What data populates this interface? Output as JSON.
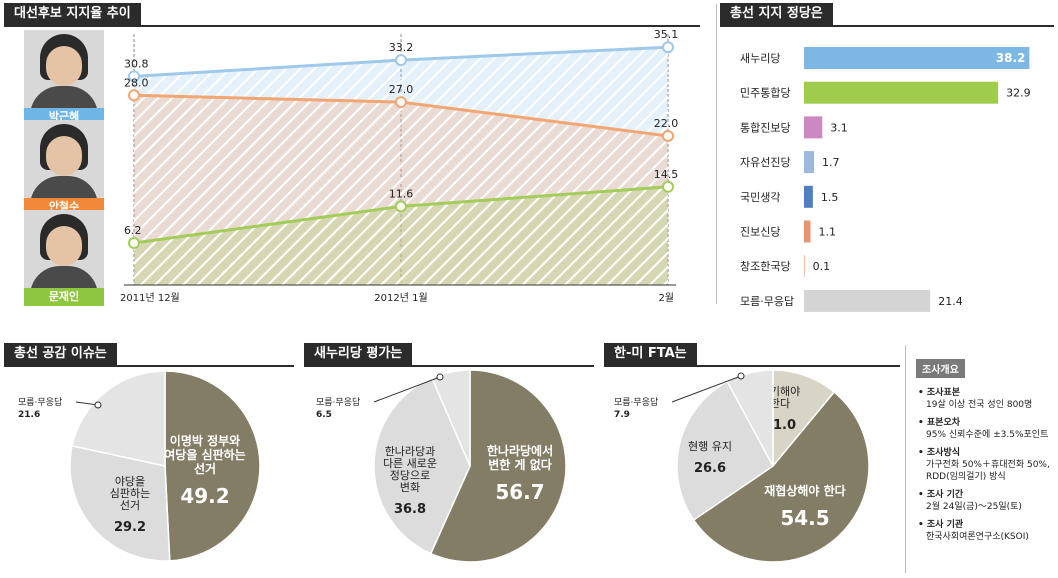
{
  "colors": {
    "blue": "#9ec9ea",
    "orange": "#f2a672",
    "green": "#a3cc5a",
    "olive": "#837d66",
    "lightgray": "#dcdcdc",
    "beige": "#d8d4c6",
    "header": "#2b2b2b"
  },
  "panels": {
    "trend_title": "대선후보 지지율 추이",
    "party_title": "총선 지지 정당은",
    "issue_title": "총선 공감 이슈는",
    "saenuri_title": "새누리당 평가는",
    "fta_title": "한-미 FTA는"
  },
  "candidates": [
    {
      "name": "박근혜",
      "color": "#6fb6e6",
      "icon": "portrait-icon"
    },
    {
      "name": "안철수",
      "color": "#f08a3a",
      "icon": "portrait-icon"
    },
    {
      "name": "문재인",
      "color": "#8dc63f",
      "icon": "portrait-icon"
    }
  ],
  "survey": {
    "title": "조사개요",
    "items": [
      {
        "head": "조사표본",
        "detail": [
          "19살 이상 전국 성인 800명"
        ]
      },
      {
        "head": "표본오차",
        "detail": [
          "95% 신뢰수준에 ±3.5%포인트"
        ]
      },
      {
        "head": "조사방식",
        "detail": [
          "가구전화 50%＋휴대전화 50%,",
          "RDD(임의걸기) 방식"
        ]
      },
      {
        "head": "조사 기간",
        "detail": [
          "2월 24일(금)～25일(토)"
        ]
      },
      {
        "head": "조사 기관",
        "detail": [
          "한국사회여론연구소(KSOI)"
        ]
      }
    ]
  },
  "chart_data": [
    {
      "type": "line",
      "title": "대선후보 지지율 추이",
      "x": [
        "2011년 12월",
        "2012년 1월",
        "2월"
      ],
      "ylim": [
        0,
        40
      ],
      "series": [
        {
          "name": "박근혜",
          "values": [
            30.8,
            33.2,
            35.1
          ],
          "labels": [
            "30.8",
            "33.2",
            "35.1"
          ],
          "color": "#9ec9ea"
        },
        {
          "name": "안철수",
          "values": [
            28.0,
            27.0,
            22.0
          ],
          "labels": [
            "28.0",
            "27.0",
            "22.0"
          ],
          "color": "#f2a672"
        },
        {
          "name": "문재인",
          "values": [
            6.2,
            11.6,
            14.5
          ],
          "labels": [
            "6.2",
            "11.6",
            "14.5"
          ],
          "color": "#a3cc5a"
        }
      ]
    },
    {
      "type": "bar",
      "title": "총선 지지 정당은",
      "categories": [
        "새누리당",
        "민주통합당",
        "통합진보당",
        "자유선진당",
        "국민생각",
        "진보신당",
        "창조한국당",
        "모름·무응답"
      ],
      "values": [
        38.2,
        32.9,
        3.1,
        1.7,
        1.5,
        1.1,
        0.1,
        21.4
      ],
      "labels": [
        "38.2",
        "32.9",
        "3.1",
        "1.7",
        "1.5",
        "1.1",
        "0.1",
        "21.4"
      ],
      "colors": [
        "#7db8e4",
        "#a0cc4e",
        "#cc88c0",
        "#9cb8dc",
        "#4f7fc0",
        "#e4976f",
        "#e4976f",
        "#d4d4d4"
      ],
      "label_inside": [
        true,
        false,
        false,
        false,
        false,
        false,
        false,
        false
      ],
      "xlim": [
        0,
        40
      ]
    },
    {
      "type": "pie",
      "title": "총선 공감 이슈는",
      "slices": [
        {
          "label": [
            "이명박 정부와",
            "여당을 심판하는",
            "선거"
          ],
          "value": 49.2,
          "text": "49.2",
          "color": "#837d66",
          "text_color": "#ffffff"
        },
        {
          "label": [
            "야당을",
            "심판하는",
            "선거"
          ],
          "value": 29.2,
          "text": "29.2",
          "color": "#dcdcdc",
          "text_color": "#222222"
        },
        {
          "label": [
            "모름·무응답"
          ],
          "value": 21.6,
          "text": "21.6",
          "color": "#e4e4e4",
          "text_color": "#222222",
          "outside": true
        }
      ]
    },
    {
      "type": "pie",
      "title": "새누리당 평가는",
      "slices": [
        {
          "label": [
            "한나라당에서",
            "변한 게 없다"
          ],
          "value": 56.7,
          "text": "56.7",
          "color": "#837d66",
          "text_color": "#ffffff"
        },
        {
          "label": [
            "한나라당과",
            "다른 새로운",
            "정당으로",
            "변화"
          ],
          "value": 36.8,
          "text": "36.8",
          "color": "#dcdcdc",
          "text_color": "#222222"
        },
        {
          "label": [
            "모름·무응답"
          ],
          "value": 6.5,
          "text": "6.5",
          "color": "#e4e4e4",
          "text_color": "#222222",
          "outside": true
        }
      ]
    },
    {
      "type": "pie",
      "title": "한-미 FTA는",
      "slices": [
        {
          "label": [
            "폐기해야",
            "한다"
          ],
          "value": 11.0,
          "text": "11.0",
          "color": "#d8d4c6",
          "text_color": "#222222"
        },
        {
          "label": [
            "재협상해야 한다"
          ],
          "value": 54.5,
          "text": "54.5",
          "color": "#837d66",
          "text_color": "#ffffff"
        },
        {
          "label": [
            "현행 유지"
          ],
          "value": 26.6,
          "text": "26.6",
          "color": "#dcdcdc",
          "text_color": "#222222"
        },
        {
          "label": [
            "모름·무응답"
          ],
          "value": 7.9,
          "text": "7.9",
          "color": "#e4e4e4",
          "text_color": "#222222",
          "outside": true
        }
      ]
    }
  ]
}
